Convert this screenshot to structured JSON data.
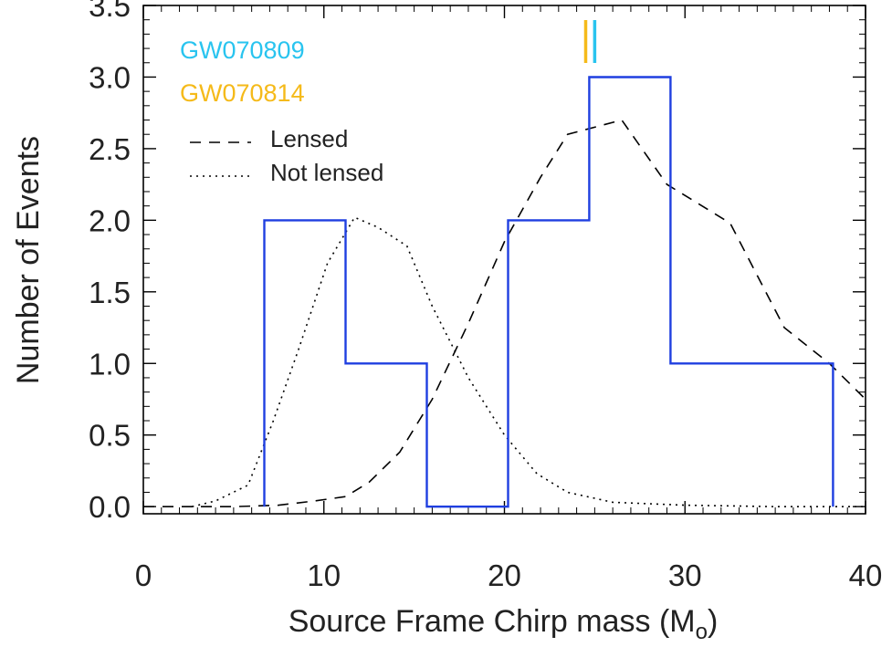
{
  "chart_data": {
    "type": "line",
    "xlabel": "Source Frame Chirp mass (M",
    "xlabel_unit_subscript": "o",
    "xlabel_close": ")",
    "ylabel": "Number of Events",
    "xlim": [
      0,
      40
    ],
    "ylim": [
      -0.05,
      3.5
    ],
    "xticks": [
      0,
      10,
      20,
      30,
      40
    ],
    "xtick_labels": [
      "0",
      "10",
      "20",
      "30",
      "40"
    ],
    "yticks": [
      0.0,
      0.5,
      1.0,
      1.5,
      2.0,
      2.5,
      3.0,
      3.5
    ],
    "ytick_labels": [
      "0.0",
      "0.5",
      "1.0",
      "1.5",
      "2.0",
      "2.5",
      "3.0",
      "3.5"
    ],
    "histogram": {
      "color": "#1f3fe0",
      "edges": [
        6.7,
        11.2,
        15.7,
        20.2,
        24.7,
        29.2,
        38.2
      ],
      "counts": [
        2,
        1,
        0,
        2,
        3,
        1
      ]
    },
    "series": [
      {
        "name": "Lensed",
        "style": "dashed",
        "x": [
          0,
          5,
          7.5,
          9.5,
          11.2,
          12.5,
          14.2,
          16,
          18,
          20,
          22,
          23.5,
          25,
          26.5,
          29,
          32.5,
          35.5,
          38,
          40
        ],
        "y": [
          0,
          0,
          0.01,
          0.04,
          0.07,
          0.17,
          0.38,
          0.75,
          1.28,
          1.85,
          2.3,
          2.6,
          2.65,
          2.7,
          2.25,
          1.98,
          1.25,
          1.0,
          0.75
        ]
      },
      {
        "name": "Not lensed",
        "style": "dotted",
        "x": [
          2.7,
          4,
          5.8,
          7.2,
          8.6,
          10.2,
          11.7,
          13,
          14.6,
          16,
          18,
          20,
          21.8,
          23.5,
          26,
          30,
          35,
          40
        ],
        "y": [
          0,
          0.04,
          0.15,
          0.6,
          1.1,
          1.7,
          2.02,
          1.95,
          1.82,
          1.4,
          0.9,
          0.5,
          0.23,
          0.1,
          0.03,
          0.01,
          0,
          0
        ]
      }
    ],
    "events": [
      {
        "name": "GW070809",
        "color": "#29c4ef",
        "x": 25.0
      },
      {
        "name": "GW070814",
        "color": "#f5ba1a",
        "x": 24.5
      }
    ],
    "legend_position": "top-left",
    "grid": false
  }
}
